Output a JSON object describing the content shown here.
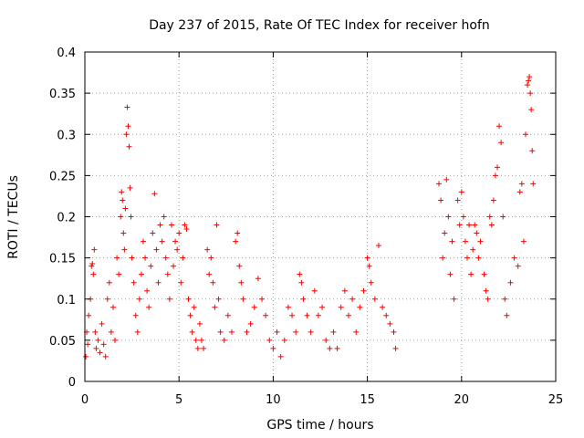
{
  "chart_data": {
    "type": "scatter",
    "title": "Day 237 of 2015, Rate Of TEC Index for receiver hofn",
    "xlabel": "GPS time / hours",
    "ylabel": "ROTI / TECUs",
    "xlim": [
      0,
      25
    ],
    "ylim": [
      0,
      0.4
    ],
    "x_ticks": [
      "0",
      "5",
      "10",
      "15",
      "20",
      "25"
    ],
    "y_ticks": [
      "0",
      "0.05",
      "0.1",
      "0.15",
      "0.2",
      "0.25",
      "0.3",
      "0.35",
      "0.4"
    ],
    "grid": true,
    "marker": "plus",
    "color": "#ff0000",
    "series": [
      {
        "points": [
          [
            0.05,
            0.03
          ],
          [
            0.1,
            0.06
          ],
          [
            0.15,
            0.045
          ],
          [
            0.2,
            0.08
          ],
          [
            0.3,
            0.1
          ],
          [
            0.35,
            0.14
          ],
          [
            0.4,
            0.143
          ],
          [
            0.45,
            0.13
          ],
          [
            0.5,
            0.16
          ],
          [
            0.55,
            0.06
          ],
          [
            0.6,
            0.04
          ],
          [
            0.7,
            0.05
          ],
          [
            0.8,
            0.035
          ],
          [
            0.9,
            0.07
          ],
          [
            1.0,
            0.045
          ],
          [
            1.1,
            0.03
          ],
          [
            1.2,
            0.1
          ],
          [
            1.3,
            0.12
          ],
          [
            1.4,
            0.06
          ],
          [
            1.5,
            0.09
          ],
          [
            1.6,
            0.05
          ],
          [
            1.7,
            0.15
          ],
          [
            1.8,
            0.13
          ],
          [
            1.9,
            0.2
          ],
          [
            1.95,
            0.23
          ],
          [
            2.0,
            0.22
          ],
          [
            2.05,
            0.18
          ],
          [
            2.1,
            0.16
          ],
          [
            2.15,
            0.21
          ],
          [
            2.2,
            0.3
          ],
          [
            2.25,
            0.333
          ],
          [
            2.3,
            0.31
          ],
          [
            2.35,
            0.285
          ],
          [
            2.4,
            0.235
          ],
          [
            2.45,
            0.2
          ],
          [
            2.5,
            0.15
          ],
          [
            2.6,
            0.12
          ],
          [
            2.7,
            0.08
          ],
          [
            2.8,
            0.06
          ],
          [
            2.9,
            0.1
          ],
          [
            3.0,
            0.13
          ],
          [
            3.1,
            0.17
          ],
          [
            3.2,
            0.15
          ],
          [
            3.3,
            0.11
          ],
          [
            3.4,
            0.09
          ],
          [
            3.5,
            0.14
          ],
          [
            3.6,
            0.18
          ],
          [
            3.7,
            0.228
          ],
          [
            3.8,
            0.16
          ],
          [
            3.9,
            0.12
          ],
          [
            4.0,
            0.19
          ],
          [
            4.1,
            0.17
          ],
          [
            4.2,
            0.2
          ],
          [
            4.3,
            0.15
          ],
          [
            4.4,
            0.13
          ],
          [
            4.5,
            0.1
          ],
          [
            4.6,
            0.19
          ],
          [
            4.7,
            0.14
          ],
          [
            4.8,
            0.17
          ],
          [
            4.9,
            0.16
          ],
          [
            5.0,
            0.18
          ],
          [
            5.1,
            0.12
          ],
          [
            5.2,
            0.15
          ],
          [
            5.3,
            0.19
          ],
          [
            5.4,
            0.185
          ],
          [
            5.5,
            0.1
          ],
          [
            5.6,
            0.08
          ],
          [
            5.7,
            0.06
          ],
          [
            5.8,
            0.09
          ],
          [
            5.9,
            0.05
          ],
          [
            6.0,
            0.04
          ],
          [
            6.1,
            0.07
          ],
          [
            6.2,
            0.05
          ],
          [
            6.3,
            0.04
          ],
          [
            6.5,
            0.16
          ],
          [
            6.6,
            0.13
          ],
          [
            6.7,
            0.15
          ],
          [
            6.8,
            0.12
          ],
          [
            6.9,
            0.09
          ],
          [
            7.0,
            0.19
          ],
          [
            7.1,
            0.1
          ],
          [
            7.2,
            0.06
          ],
          [
            7.4,
            0.05
          ],
          [
            7.6,
            0.08
          ],
          [
            7.8,
            0.06
          ],
          [
            8.0,
            0.17
          ],
          [
            8.1,
            0.18
          ],
          [
            8.2,
            0.14
          ],
          [
            8.3,
            0.12
          ],
          [
            8.4,
            0.1
          ],
          [
            8.6,
            0.06
          ],
          [
            8.8,
            0.07
          ],
          [
            9.0,
            0.09
          ],
          [
            9.2,
            0.125
          ],
          [
            9.4,
            0.1
          ],
          [
            9.6,
            0.08
          ],
          [
            9.8,
            0.05
          ],
          [
            10.0,
            0.04
          ],
          [
            10.2,
            0.06
          ],
          [
            10.4,
            0.03
          ],
          [
            10.6,
            0.05
          ],
          [
            10.8,
            0.09
          ],
          [
            11.0,
            0.08
          ],
          [
            11.2,
            0.06
          ],
          [
            11.4,
            0.13
          ],
          [
            11.5,
            0.12
          ],
          [
            11.6,
            0.1
          ],
          [
            11.8,
            0.08
          ],
          [
            12.0,
            0.06
          ],
          [
            12.2,
            0.11
          ],
          [
            12.4,
            0.08
          ],
          [
            12.6,
            0.09
          ],
          [
            12.8,
            0.05
          ],
          [
            13.0,
            0.04
          ],
          [
            13.2,
            0.06
          ],
          [
            13.4,
            0.04
          ],
          [
            13.6,
            0.09
          ],
          [
            13.8,
            0.11
          ],
          [
            14.0,
            0.08
          ],
          [
            14.2,
            0.1
          ],
          [
            14.4,
            0.06
          ],
          [
            14.6,
            0.09
          ],
          [
            14.8,
            0.11
          ],
          [
            15.0,
            0.15
          ],
          [
            15.1,
            0.14
          ],
          [
            15.2,
            0.12
          ],
          [
            15.4,
            0.1
          ],
          [
            15.6,
            0.165
          ],
          [
            15.8,
            0.09
          ],
          [
            16.0,
            0.08
          ],
          [
            16.2,
            0.07
          ],
          [
            16.4,
            0.06
          ],
          [
            16.5,
            0.04
          ],
          [
            18.8,
            0.24
          ],
          [
            18.9,
            0.22
          ],
          [
            19.0,
            0.15
          ],
          [
            19.1,
            0.18
          ],
          [
            19.2,
            0.245
          ],
          [
            19.3,
            0.2
          ],
          [
            19.4,
            0.13
          ],
          [
            19.5,
            0.17
          ],
          [
            19.6,
            0.1
          ],
          [
            19.8,
            0.22
          ],
          [
            19.9,
            0.19
          ],
          [
            20.0,
            0.23
          ],
          [
            20.1,
            0.2
          ],
          [
            20.2,
            0.17
          ],
          [
            20.3,
            0.15
          ],
          [
            20.4,
            0.19
          ],
          [
            20.5,
            0.13
          ],
          [
            20.6,
            0.16
          ],
          [
            20.7,
            0.19
          ],
          [
            20.8,
            0.18
          ],
          [
            20.9,
            0.15
          ],
          [
            21.0,
            0.17
          ],
          [
            21.2,
            0.13
          ],
          [
            21.3,
            0.11
          ],
          [
            21.4,
            0.1
          ],
          [
            21.5,
            0.2
          ],
          [
            21.6,
            0.19
          ],
          [
            21.7,
            0.22
          ],
          [
            21.8,
            0.25
          ],
          [
            21.9,
            0.26
          ],
          [
            22.0,
            0.31
          ],
          [
            22.1,
            0.29
          ],
          [
            22.2,
            0.2
          ],
          [
            22.3,
            0.1
          ],
          [
            22.4,
            0.08
          ],
          [
            22.6,
            0.12
          ],
          [
            22.8,
            0.15
          ],
          [
            23.0,
            0.14
          ],
          [
            23.1,
            0.23
          ],
          [
            23.2,
            0.24
          ],
          [
            23.3,
            0.17
          ],
          [
            23.4,
            0.3
          ],
          [
            23.5,
            0.36
          ],
          [
            23.55,
            0.365
          ],
          [
            23.6,
            0.37
          ],
          [
            23.65,
            0.35
          ],
          [
            23.7,
            0.33
          ],
          [
            23.75,
            0.28
          ],
          [
            23.8,
            0.24
          ]
        ]
      }
    ]
  }
}
